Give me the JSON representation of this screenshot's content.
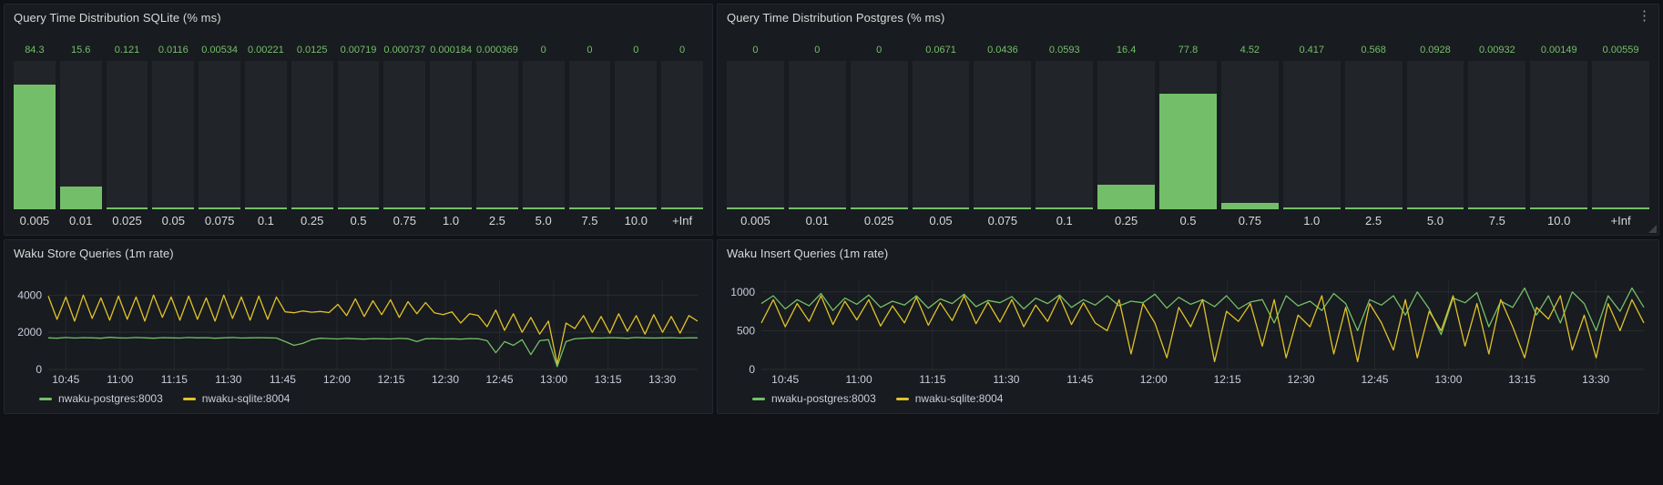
{
  "icons": {
    "panel_menu": "⋮"
  },
  "chart_data": [
    {
      "id": "sqlite_hist",
      "type": "bar",
      "title": "Query Time Distribution SQLite (% ms)",
      "categories": [
        "0.005",
        "0.01",
        "0.025",
        "0.05",
        "0.075",
        "0.1",
        "0.25",
        "0.5",
        "0.75",
        "1.0",
        "2.5",
        "5.0",
        "7.5",
        "10.0",
        "+Inf"
      ],
      "values": [
        84.3,
        15.6,
        0.121,
        0.0116,
        0.00534,
        0.00221,
        0.0125,
        0.00719,
        0.000737,
        0.000184,
        0.000369,
        0,
        0,
        0,
        0
      ],
      "value_labels": [
        "84.3",
        "15.6",
        "0.121",
        "0.0116",
        "0.00534",
        "0.00221",
        "0.0125",
        "0.00719",
        "0.000737",
        "0.000184",
        "0.000369",
        "0",
        "0",
        "0",
        "0"
      ],
      "ylim": [
        0,
        100
      ],
      "bar_color": "#73bf69",
      "bar_bg": "#212529",
      "grid": false,
      "legend_position": "none"
    },
    {
      "id": "postgres_hist",
      "type": "bar",
      "title": "Query Time Distribution Postgres (% ms)",
      "categories": [
        "0.005",
        "0.01",
        "0.025",
        "0.05",
        "0.075",
        "0.1",
        "0.25",
        "0.5",
        "0.75",
        "1.0",
        "2.5",
        "5.0",
        "7.5",
        "10.0",
        "+Inf"
      ],
      "values": [
        0,
        0,
        0,
        0.0671,
        0.0436,
        0.0593,
        16.4,
        77.8,
        4.52,
        0.417,
        0.568,
        0.0928,
        0.00932,
        0.00149,
        0.00559
      ],
      "value_labels": [
        "0",
        "0",
        "0",
        "0.0671",
        "0.0436",
        "0.0593",
        "16.4",
        "77.8",
        "4.52",
        "0.417",
        "0.568",
        "0.0928",
        "0.00932",
        "0.00149",
        "0.00559"
      ],
      "ylim": [
        0,
        100
      ],
      "bar_color": "#73bf69",
      "bar_bg": "#212529",
      "grid": false,
      "legend_position": "none"
    },
    {
      "id": "store_ts",
      "type": "line",
      "title": "Waku Store Queries (1m rate)",
      "x_ticks": [
        "10:45",
        "11:00",
        "11:15",
        "11:30",
        "11:45",
        "12:00",
        "12:15",
        "12:30",
        "12:45",
        "13:00",
        "13:15",
        "13:30"
      ],
      "x_tick_start_frac": 0.027,
      "x_tick_step_frac": 0.0835,
      "y_ticks": [
        0,
        2000,
        4000
      ],
      "ylim": [
        0,
        4800
      ],
      "grid": true,
      "legend_position": "bottom",
      "series": [
        {
          "name": "nwaku-postgres:8003",
          "color": "#73bf69",
          "values": [
            1700,
            1680,
            1720,
            1690,
            1710,
            1700,
            1680,
            1730,
            1700,
            1690,
            1720,
            1700,
            1680,
            1710,
            1700,
            1690,
            1720,
            1700,
            1710,
            1680,
            1700,
            1720,
            1690,
            1700,
            1710,
            1700,
            1690,
            1500,
            1300,
            1400,
            1600,
            1680,
            1660,
            1640,
            1670,
            1650,
            1630,
            1660,
            1650,
            1640,
            1670,
            1650,
            1500,
            1650,
            1660,
            1640,
            1650,
            1630,
            1660,
            1650,
            1550,
            900,
            1500,
            1300,
            1600,
            800,
            1550,
            1600,
            150,
            1500,
            1650,
            1680,
            1700,
            1690,
            1710,
            1700,
            1680,
            1720,
            1700,
            1690,
            1700,
            1710,
            1690,
            1700,
            1700
          ]
        },
        {
          "name": "nwaku-sqlite:8004",
          "color": "#e0c229",
          "values": [
            3950,
            2700,
            3900,
            2600,
            4000,
            2750,
            3850,
            2650,
            3950,
            2700,
            3900,
            2600,
            4000,
            2800,
            3900,
            2650,
            3950,
            2700,
            3850,
            2600,
            4000,
            2750,
            3900,
            2650,
            3950,
            2700,
            3900,
            3100,
            3050,
            3150,
            3080,
            3120,
            3060,
            3500,
            2900,
            3800,
            2850,
            3700,
            2950,
            3750,
            2800,
            3650,
            3000,
            3600,
            3050,
            2950,
            3100,
            2500,
            3000,
            2900,
            2300,
            3200,
            2100,
            3000,
            2000,
            2800,
            1900,
            2600,
            300,
            2500,
            2200,
            2900,
            2000,
            2850,
            1950,
            3000,
            2050,
            2900,
            1900,
            2950,
            2000,
            2850,
            1950,
            2900,
            2600
          ]
        }
      ]
    },
    {
      "id": "insert_ts",
      "type": "line",
      "title": "Waku Insert Queries (1m rate)",
      "x_ticks": [
        "10:45",
        "11:00",
        "11:15",
        "11:30",
        "11:45",
        "12:00",
        "12:15",
        "12:30",
        "12:45",
        "13:00",
        "13:15",
        "13:30"
      ],
      "x_tick_start_frac": 0.027,
      "x_tick_step_frac": 0.0835,
      "y_ticks": [
        0,
        500,
        1000
      ],
      "ylim": [
        0,
        1150
      ],
      "grid": true,
      "legend_position": "bottom",
      "series": [
        {
          "name": "nwaku-postgres:8003",
          "color": "#73bf69",
          "values": [
            850,
            950,
            780,
            900,
            820,
            980,
            760,
            920,
            840,
            960,
            800,
            880,
            830,
            950,
            790,
            910,
            850,
            970,
            810,
            890,
            860,
            940,
            780,
            920,
            850,
            960,
            800,
            900,
            830,
            950,
            820,
            880,
            860,
            970,
            790,
            930,
            840,
            900,
            810,
            950,
            780,
            870,
            900,
            600,
            950,
            820,
            880,
            760,
            980,
            850,
            500,
            900,
            830,
            950,
            700,
            1000,
            780,
            450,
            920,
            860,
            990,
            550,
            880,
            800,
            1050,
            700,
            950,
            600,
            1000,
            850,
            500,
            950,
            750,
            1050,
            800
          ]
        },
        {
          "name": "nwaku-sqlite:8004",
          "color": "#e0c229",
          "values": [
            600,
            900,
            550,
            850,
            620,
            950,
            580,
            880,
            640,
            900,
            560,
            820,
            600,
            930,
            570,
            860,
            630,
            950,
            590,
            870,
            610,
            900,
            550,
            830,
            620,
            940,
            580,
            860,
            600,
            500,
            900,
            200,
            850,
            600,
            150,
            800,
            550,
            900,
            100,
            750,
            620,
            850,
            300,
            900,
            150,
            700,
            550,
            950,
            200,
            800,
            100,
            850,
            600,
            250,
            900,
            150,
            750,
            500,
            950,
            300,
            850,
            200,
            900,
            550,
            150,
            800,
            650,
            950,
            250,
            700,
            150,
            850,
            500,
            900,
            600
          ]
        }
      ]
    }
  ]
}
